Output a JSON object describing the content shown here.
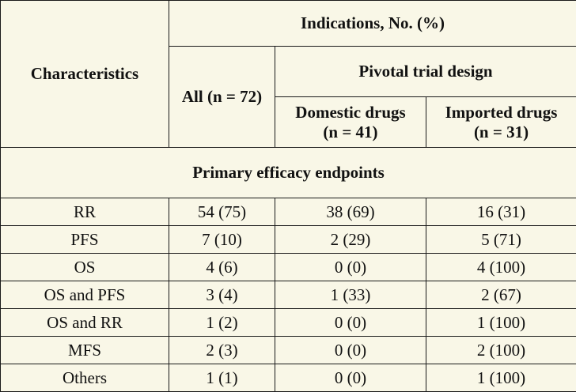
{
  "table": {
    "header": {
      "characteristics": "Characteristics",
      "indications": "Indications, No. (%)",
      "all": "All (n = 72)",
      "pivotal": "Pivotal trial design",
      "domestic_line1": "Domestic drugs",
      "domestic_line2": "(n = 41)",
      "imported_line1": "Imported drugs",
      "imported_line2": "(n = 31)"
    },
    "section_title": "Primary efficacy endpoints",
    "rows": [
      {
        "label": "RR",
        "all": "54 (75)",
        "domestic": "38 (69)",
        "imported": "16 (31)"
      },
      {
        "label": "PFS",
        "all": "7 (10)",
        "domestic": "2 (29)",
        "imported": "5 (71)"
      },
      {
        "label": "OS",
        "all": "4 (6)",
        "domestic": "0 (0)",
        "imported": "4 (100)"
      },
      {
        "label": "OS and PFS",
        "all": "3 (4)",
        "domestic": "1 (33)",
        "imported": "2 (67)"
      },
      {
        "label": "OS and RR",
        "all": "1 (2)",
        "domestic": "0 (0)",
        "imported": "1 (100)"
      },
      {
        "label": "MFS",
        "all": "2 (3)",
        "domestic": "0 (0)",
        "imported": "2 (100)"
      },
      {
        "label": "Others",
        "all": "1 (1)",
        "domestic": "0 (0)",
        "imported": "1 (100)"
      }
    ]
  }
}
